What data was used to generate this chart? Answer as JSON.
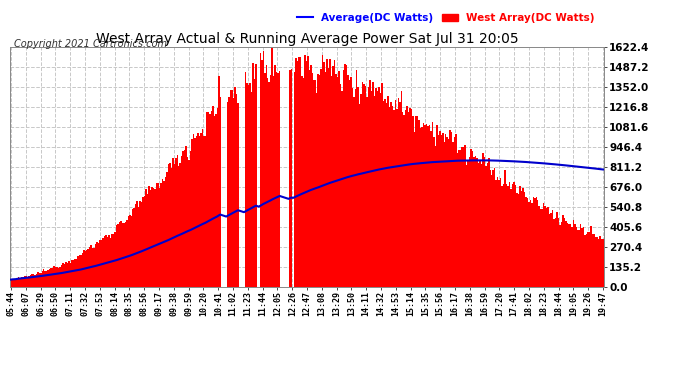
{
  "title": "West Array Actual & Running Average Power Sat Jul 31 20:05",
  "copyright": "Copyright 2021 Cartronics.com",
  "legend_avg": "Average(DC Watts)",
  "legend_west": "West Array(DC Watts)",
  "ymax": 1622.4,
  "yticks": [
    0.0,
    135.2,
    270.4,
    405.6,
    540.8,
    676.0,
    811.2,
    946.4,
    1081.6,
    1216.8,
    1352.0,
    1487.2,
    1622.4
  ],
  "bar_color": "#FF0000",
  "avg_color": "#0000CC",
  "bg_color": "#FFFFFF",
  "grid_color": "#C8C8C8",
  "title_color": "#000000",
  "copyright_color": "#333333",
  "legend_avg_color": "#0000FF",
  "legend_west_color": "#FF0000",
  "x_labels": [
    "05:44",
    "06:07",
    "06:29",
    "06:50",
    "07:11",
    "07:32",
    "07:53",
    "08:14",
    "08:35",
    "08:56",
    "09:17",
    "09:38",
    "09:59",
    "10:20",
    "10:41",
    "11:02",
    "11:23",
    "11:44",
    "12:05",
    "12:26",
    "12:47",
    "13:08",
    "13:29",
    "13:50",
    "14:11",
    "14:32",
    "14:53",
    "15:14",
    "15:35",
    "15:56",
    "16:17",
    "16:38",
    "16:59",
    "17:20",
    "17:41",
    "18:02",
    "18:23",
    "18:44",
    "19:05",
    "19:26",
    "19:47"
  ],
  "num_points": 400
}
